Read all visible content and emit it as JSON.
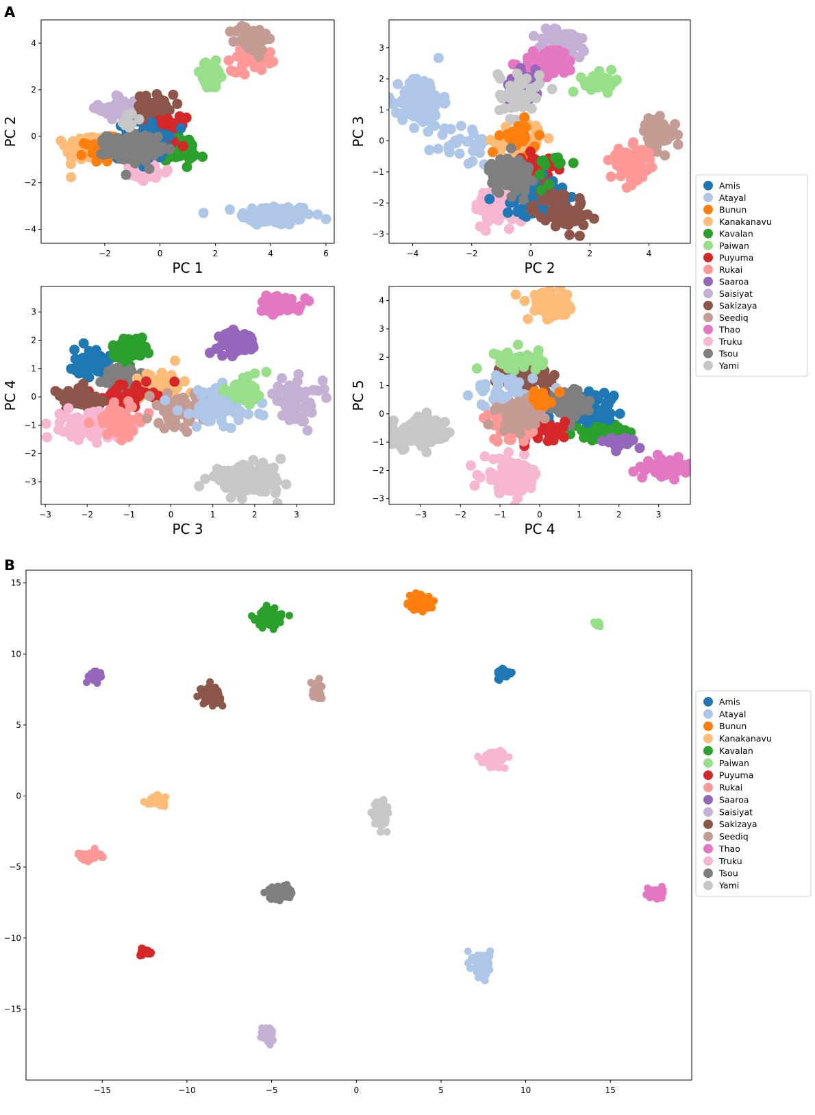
{
  "figure": {
    "panel_a_label": "A",
    "panel_b_label": "B"
  },
  "populations": [
    {
      "name": "Amis",
      "color": "#1f77b4"
    },
    {
      "name": "Atayal",
      "color": "#aec7e8"
    },
    {
      "name": "Bunun",
      "color": "#ff7f0e"
    },
    {
      "name": "Kanakanavu",
      "color": "#ffbb78"
    },
    {
      "name": "Kavalan",
      "color": "#2ca02c"
    },
    {
      "name": "Paiwan",
      "color": "#98df8a"
    },
    {
      "name": "Puyuma",
      "color": "#d62728"
    },
    {
      "name": "Rukai",
      "color": "#ff9896"
    },
    {
      "name": "Saaroa",
      "color": "#9467bd"
    },
    {
      "name": "Saisiyat",
      "color": "#c5b0d5"
    },
    {
      "name": "Sakizaya",
      "color": "#8c564b"
    },
    {
      "name": "Seediq",
      "color": "#c49c94"
    },
    {
      "name": "Thao",
      "color": "#e377c2"
    },
    {
      "name": "Truku",
      "color": "#f7b6d2"
    },
    {
      "name": "Tsou",
      "color": "#7f7f7f"
    },
    {
      "name": "Yami",
      "color": "#c7c7c7"
    }
  ],
  "chart_data": [
    {
      "id": "pca-pc1-pc2",
      "type": "scatter",
      "xlabel": "PC 1",
      "ylabel": "PC 2",
      "xlim": [
        -4.3,
        6.3
      ],
      "ylim": [
        -4.6,
        5.0
      ],
      "xticks": [
        -2,
        0,
        2,
        4,
        6
      ],
      "yticks": [
        -4,
        -2,
        0,
        2,
        4
      ],
      "clusters": [
        {
          "pop": "Atayal",
          "x": 4.2,
          "y": -3.4,
          "sx": 0.65,
          "sy": 0.22,
          "n": 130
        },
        {
          "pop": "Kanakanavu",
          "x": -2.6,
          "y": -0.5,
          "sx": 0.4,
          "sy": 0.3,
          "n": 90
        },
        {
          "pop": "Bunun",
          "x": -2.1,
          "y": -0.6,
          "sx": 0.3,
          "sy": 0.25,
          "n": 40
        },
        {
          "pop": "Saisiyat",
          "x": -1.5,
          "y": 1.2,
          "sx": 0.35,
          "sy": 0.3,
          "n": 40
        },
        {
          "pop": "Sakizaya",
          "x": -0.2,
          "y": 1.1,
          "sx": 0.35,
          "sy": 0.35,
          "n": 50
        },
        {
          "pop": "Kavalan",
          "x": 0.7,
          "y": -0.6,
          "sx": 0.3,
          "sy": 0.25,
          "n": 70
        },
        {
          "pop": "Puyuma",
          "x": 0.2,
          "y": 0.2,
          "sx": 0.35,
          "sy": 0.3,
          "n": 40
        },
        {
          "pop": "Truku",
          "x": -0.5,
          "y": -1.5,
          "sx": 0.4,
          "sy": 0.25,
          "n": 50
        },
        {
          "pop": "Amis",
          "x": -0.6,
          "y": -0.2,
          "sx": 0.45,
          "sy": 0.4,
          "n": 70
        },
        {
          "pop": "Tsou",
          "x": -1.0,
          "y": -0.5,
          "sx": 0.45,
          "sy": 0.3,
          "n": 120
        },
        {
          "pop": "Paiwan",
          "x": 1.8,
          "y": 2.6,
          "sx": 0.3,
          "sy": 0.3,
          "n": 40
        },
        {
          "pop": "Rukai",
          "x": 3.3,
          "y": 3.4,
          "sx": 0.35,
          "sy": 0.3,
          "n": 60
        },
        {
          "pop": "Seediq",
          "x": 3.3,
          "y": 4.2,
          "sx": 0.3,
          "sy": 0.3,
          "n": 60
        },
        {
          "pop": "Yami",
          "x": -1.2,
          "y": 0.6,
          "sx": 0.2,
          "sy": 0.2,
          "n": 12
        }
      ]
    },
    {
      "id": "pca-pc2-pc3",
      "type": "scatter",
      "xlabel": "PC 2",
      "ylabel": "PC 3",
      "xlim": [
        -4.8,
        5.4
      ],
      "ylim": [
        -3.3,
        3.9
      ],
      "xticks": [
        -4,
        -2,
        0,
        2,
        4
      ],
      "yticks": [
        -3,
        -2,
        -1,
        0,
        1,
        2,
        3
      ],
      "clusters": [
        {
          "pop": "Atayal",
          "x": -3.7,
          "y": 1.3,
          "sx": 0.35,
          "sy": 0.4,
          "n": 110
        },
        {
          "pop": "Atayal",
          "x": -2.3,
          "y": -0.1,
          "sx": 0.5,
          "sy": 0.35,
          "n": 30
        },
        {
          "pop": "Saisiyat",
          "x": 1.1,
          "y": 3.1,
          "sx": 0.5,
          "sy": 0.25,
          "n": 60
        },
        {
          "pop": "Thao",
          "x": 0.6,
          "y": 2.5,
          "sx": 0.45,
          "sy": 0.25,
          "n": 70
        },
        {
          "pop": "Saaroa",
          "x": -0.2,
          "y": 1.8,
          "sx": 0.25,
          "sy": 0.25,
          "n": 60
        },
        {
          "pop": "Yami",
          "x": -0.4,
          "y": 1.5,
          "sx": 0.35,
          "sy": 0.4,
          "n": 50
        },
        {
          "pop": "Paiwan",
          "x": 2.4,
          "y": 1.9,
          "sx": 0.3,
          "sy": 0.15,
          "n": 40
        },
        {
          "pop": "Seediq",
          "x": 4.3,
          "y": 0.2,
          "sx": 0.3,
          "sy": 0.25,
          "n": 60
        },
        {
          "pop": "Rukai",
          "x": 3.4,
          "y": -0.8,
          "sx": 0.35,
          "sy": 0.3,
          "n": 70
        },
        {
          "pop": "Kanakanavu",
          "x": -0.4,
          "y": 0.0,
          "sx": 0.4,
          "sy": 0.3,
          "n": 60
        },
        {
          "pop": "Bunun",
          "x": -0.4,
          "y": 0.1,
          "sx": 0.3,
          "sy": 0.25,
          "n": 25
        },
        {
          "pop": "Puyuma",
          "x": 0.1,
          "y": -0.9,
          "sx": 0.3,
          "sy": 0.25,
          "n": 40
        },
        {
          "pop": "Truku",
          "x": -1.0,
          "y": -2.1,
          "sx": 0.45,
          "sy": 0.3,
          "n": 100
        },
        {
          "pop": "Amis",
          "x": 0.1,
          "y": -1.8,
          "sx": 0.5,
          "sy": 0.3,
          "n": 70
        },
        {
          "pop": "Sakizaya",
          "x": 1.0,
          "y": -2.2,
          "sx": 0.45,
          "sy": 0.35,
          "n": 60
        },
        {
          "pop": "Tsou",
          "x": -0.7,
          "y": -1.1,
          "sx": 0.35,
          "sy": 0.3,
          "n": 110
        },
        {
          "pop": "Kavalan",
          "x": 0.7,
          "y": -0.8,
          "sx": 0.3,
          "sy": 0.3,
          "n": 12
        }
      ]
    },
    {
      "id": "pca-pc3-pc4",
      "type": "scatter",
      "xlabel": "PC 3",
      "ylabel": "PC 4",
      "xlim": [
        -3.1,
        3.9
      ],
      "ylim": [
        -3.8,
        3.9
      ],
      "xticks": [
        -3,
        -2,
        -1,
        0,
        1,
        2,
        3
      ],
      "yticks": [
        -3,
        -2,
        -1,
        0,
        1,
        2,
        3
      ],
      "clusters": [
        {
          "pop": "Amis",
          "x": -1.8,
          "y": 1.2,
          "sx": 0.25,
          "sy": 0.25,
          "n": 70
        },
        {
          "pop": "Kavalan",
          "x": -1.0,
          "y": 1.7,
          "sx": 0.2,
          "sy": 0.2,
          "n": 60
        },
        {
          "pop": "Thao",
          "x": 2.6,
          "y": 3.3,
          "sx": 0.25,
          "sy": 0.15,
          "n": 60
        },
        {
          "pop": "Saaroa",
          "x": 1.6,
          "y": 1.9,
          "sx": 0.25,
          "sy": 0.2,
          "n": 60
        },
        {
          "pop": "Tsou",
          "x": -1.1,
          "y": 0.6,
          "sx": 0.25,
          "sy": 0.2,
          "n": 90
        },
        {
          "pop": "Kanakanavu",
          "x": -0.3,
          "y": 0.4,
          "sx": 0.3,
          "sy": 0.3,
          "n": 60
        },
        {
          "pop": "Puyuma",
          "x": -1.0,
          "y": 0.1,
          "sx": 0.3,
          "sy": 0.2,
          "n": 40
        },
        {
          "pop": "Sakizaya",
          "x": -2.3,
          "y": -0.1,
          "sx": 0.3,
          "sy": 0.2,
          "n": 60
        },
        {
          "pop": "Truku",
          "x": -1.9,
          "y": -1.0,
          "sx": 0.35,
          "sy": 0.25,
          "n": 110
        },
        {
          "pop": "Rukai",
          "x": -1.2,
          "y": -0.8,
          "sx": 0.3,
          "sy": 0.3,
          "n": 50
        },
        {
          "pop": "Seediq",
          "x": 0.2,
          "y": -0.5,
          "sx": 0.35,
          "sy": 0.3,
          "n": 60
        },
        {
          "pop": "Atayal",
          "x": 1.1,
          "y": -0.4,
          "sx": 0.45,
          "sy": 0.35,
          "n": 90
        },
        {
          "pop": "Paiwan",
          "x": 1.8,
          "y": 0.2,
          "sx": 0.25,
          "sy": 0.3,
          "n": 40
        },
        {
          "pop": "Saisiyat",
          "x": 3.0,
          "y": -0.1,
          "sx": 0.3,
          "sy": 0.35,
          "n": 60
        },
        {
          "pop": "Yami",
          "x": 1.8,
          "y": -2.9,
          "sx": 0.45,
          "sy": 0.25,
          "n": 110
        }
      ]
    },
    {
      "id": "pca-pc4-pc5",
      "type": "scatter",
      "xlabel": "PC 4",
      "ylabel": "PC 5",
      "xlim": [
        -3.8,
        3.8
      ],
      "ylim": [
        -3.2,
        4.5
      ],
      "xticks": [
        -3,
        -2,
        -1,
        0,
        1,
        2,
        3
      ],
      "yticks": [
        -3,
        -2,
        -1,
        0,
        1,
        2,
        3,
        4
      ],
      "clusters": [
        {
          "pop": "Kanakanavu",
          "x": 0.3,
          "y": 3.8,
          "sx": 0.3,
          "sy": 0.25,
          "n": 60
        },
        {
          "pop": "Yami",
          "x": -3.0,
          "y": -0.7,
          "sx": 0.4,
          "sy": 0.25,
          "n": 110
        },
        {
          "pop": "Truku",
          "x": -0.7,
          "y": -2.2,
          "sx": 0.35,
          "sy": 0.3,
          "n": 110
        },
        {
          "pop": "Thao",
          "x": 3.2,
          "y": -1.9,
          "sx": 0.25,
          "sy": 0.15,
          "n": 60
        },
        {
          "pop": "Kavalan",
          "x": 1.6,
          "y": -0.6,
          "sx": 0.3,
          "sy": 0.15,
          "n": 80
        },
        {
          "pop": "Saaroa",
          "x": 2.0,
          "y": -1.0,
          "sx": 0.2,
          "sy": 0.1,
          "n": 25
        },
        {
          "pop": "Amis",
          "x": 1.2,
          "y": 0.3,
          "sx": 0.4,
          "sy": 0.25,
          "n": 70
        },
        {
          "pop": "Tsou",
          "x": 0.6,
          "y": 0.4,
          "sx": 0.25,
          "sy": 0.25,
          "n": 90
        },
        {
          "pop": "Puyuma",
          "x": 0.0,
          "y": -0.6,
          "sx": 0.3,
          "sy": 0.2,
          "n": 50
        },
        {
          "pop": "Sakizaya",
          "x": -0.3,
          "y": 1.3,
          "sx": 0.35,
          "sy": 0.3,
          "n": 60
        },
        {
          "pop": "Paiwan",
          "x": -0.5,
          "y": 1.9,
          "sx": 0.3,
          "sy": 0.2,
          "n": 40
        },
        {
          "pop": "Atayal",
          "x": -0.8,
          "y": 0.8,
          "sx": 0.4,
          "sy": 0.3,
          "n": 50
        },
        {
          "pop": "Rukai",
          "x": -0.7,
          "y": -0.4,
          "sx": 0.35,
          "sy": 0.3,
          "n": 60
        },
        {
          "pop": "Seediq",
          "x": -0.5,
          "y": 0.0,
          "sx": 0.3,
          "sy": 0.3,
          "n": 50
        },
        {
          "pop": "Bunun",
          "x": 0.1,
          "y": 0.5,
          "sx": 0.2,
          "sy": 0.2,
          "n": 15
        }
      ]
    },
    {
      "id": "umap",
      "type": "scatter",
      "xlabel": "",
      "ylabel": "",
      "xlim": [
        -19.5,
        19.8
      ],
      "ylim": [
        -20.0,
        15.9
      ],
      "xticks": [
        -15,
        -10,
        -5,
        0,
        5,
        10,
        15
      ],
      "yticks": [
        -15,
        -10,
        -5,
        0,
        5,
        10,
        15
      ],
      "clusters": [
        {
          "pop": "Bunun",
          "x": 3.7,
          "y": 13.6,
          "sx": 0.3,
          "sy": 0.25,
          "n": 90
        },
        {
          "pop": "Kavalan",
          "x": -5.1,
          "y": 12.6,
          "sx": 0.35,
          "sy": 0.3,
          "n": 110
        },
        {
          "pop": "Paiwan",
          "x": 14.3,
          "y": 12.1,
          "sx": 0.15,
          "sy": 0.1,
          "n": 15
        },
        {
          "pop": "Amis",
          "x": 8.7,
          "y": 8.6,
          "sx": 0.2,
          "sy": 0.2,
          "n": 50
        },
        {
          "pop": "Saaroa",
          "x": -15.4,
          "y": 8.4,
          "sx": 0.2,
          "sy": 0.2,
          "n": 50
        },
        {
          "pop": "Sakizaya",
          "x": -8.6,
          "y": 7.1,
          "sx": 0.3,
          "sy": 0.3,
          "n": 90
        },
        {
          "pop": "Seediq",
          "x": -2.3,
          "y": 7.5,
          "sx": 0.15,
          "sy": 0.3,
          "n": 40
        },
        {
          "pop": "Truku",
          "x": 8.2,
          "y": 2.7,
          "sx": 0.35,
          "sy": 0.25,
          "n": 110
        },
        {
          "pop": "Kanakanavu",
          "x": -11.8,
          "y": -0.3,
          "sx": 0.25,
          "sy": 0.15,
          "n": 50
        },
        {
          "pop": "Yami",
          "x": 1.4,
          "y": -1.3,
          "sx": 0.2,
          "sy": 0.45,
          "n": 100
        },
        {
          "pop": "Rukai",
          "x": -15.7,
          "y": -4.2,
          "sx": 0.35,
          "sy": 0.15,
          "n": 70
        },
        {
          "pop": "Tsou",
          "x": -4.5,
          "y": -6.8,
          "sx": 0.3,
          "sy": 0.2,
          "n": 110
        },
        {
          "pop": "Thao",
          "x": 17.7,
          "y": -6.9,
          "sx": 0.2,
          "sy": 0.2,
          "n": 60
        },
        {
          "pop": "Puyuma",
          "x": -12.4,
          "y": -11.0,
          "sx": 0.15,
          "sy": 0.12,
          "n": 40
        },
        {
          "pop": "Atayal",
          "x": 7.4,
          "y": -11.9,
          "sx": 0.25,
          "sy": 0.45,
          "n": 100
        },
        {
          "pop": "Saisiyat",
          "x": -5.2,
          "y": -16.8,
          "sx": 0.2,
          "sy": 0.3,
          "n": 50
        }
      ]
    }
  ]
}
